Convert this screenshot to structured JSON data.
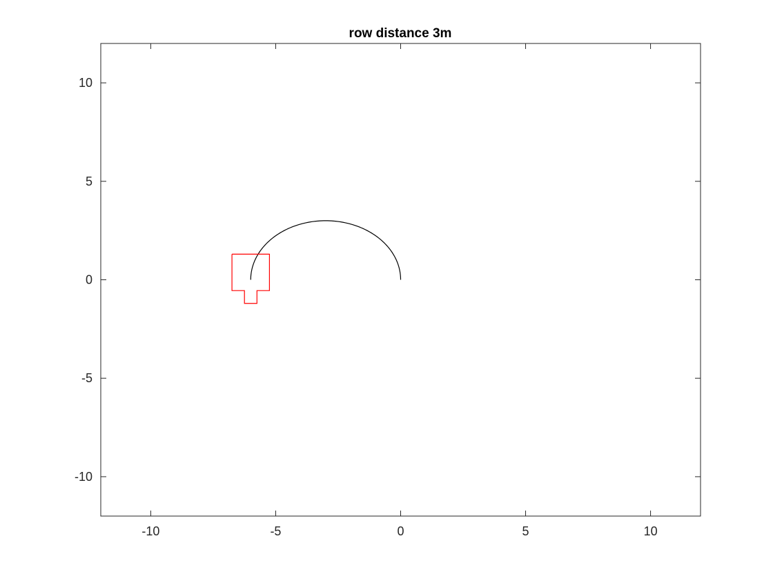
{
  "chart_data": {
    "type": "line",
    "title": "row distance 3m",
    "xlabel": "",
    "ylabel": "",
    "xlim": [
      -12,
      12
    ],
    "ylim": [
      -12,
      12
    ],
    "xticks": [
      -10,
      -5,
      0,
      5,
      10
    ],
    "yticks": [
      -10,
      -5,
      0,
      5,
      10
    ],
    "grid": false,
    "legend": "none",
    "series": [
      {
        "kind": "arc",
        "color": "#000000",
        "center": [
          -3,
          0
        ],
        "radius": 3,
        "start_angle_deg": 0,
        "end_angle_deg": 180
      },
      {
        "kind": "polygon",
        "color": "#ff0000",
        "x": [
          -6.75,
          -5.25,
          -5.25,
          -5.75,
          -5.75,
          -6.25,
          -6.25,
          -6.75,
          -6.75
        ],
        "y": [
          1.3,
          1.3,
          -0.55,
          -0.55,
          -1.2,
          -1.2,
          -0.55,
          -0.55,
          1.3
        ]
      }
    ]
  }
}
